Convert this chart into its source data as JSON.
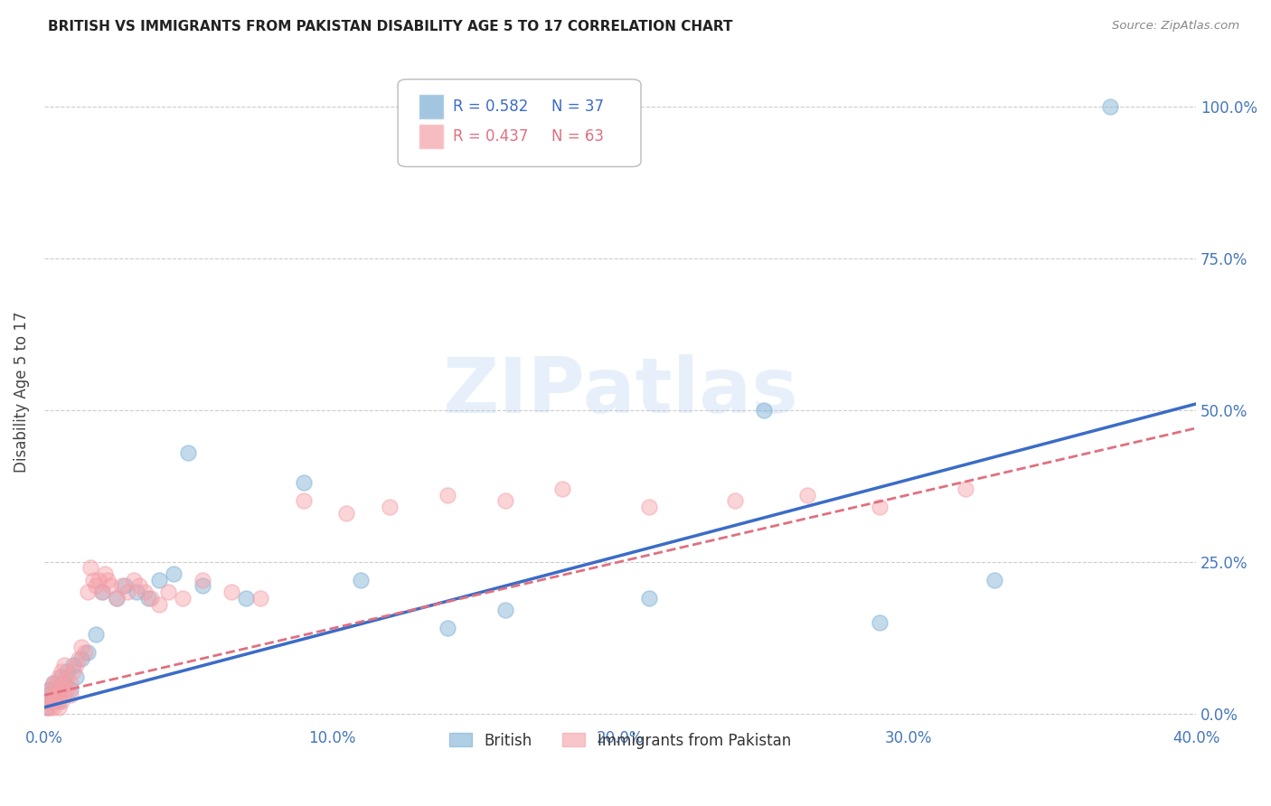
{
  "title": "BRITISH VS IMMIGRANTS FROM PAKISTAN DISABILITY AGE 5 TO 17 CORRELATION CHART",
  "source": "Source: ZipAtlas.com",
  "ylabel": "Disability Age 5 to 17",
  "xlabel_ticks": [
    "0.0%",
    "10.0%",
    "20.0%",
    "30.0%",
    "40.0%"
  ],
  "xlabel_vals": [
    0.0,
    0.1,
    0.2,
    0.3,
    0.4
  ],
  "ylabel_ticks": [
    "0.0%",
    "25.0%",
    "50.0%",
    "75.0%",
    "100.0%"
  ],
  "ylabel_vals": [
    0.0,
    0.25,
    0.5,
    0.75,
    1.0
  ],
  "xlim": [
    0.0,
    0.4
  ],
  "ylim": [
    -0.02,
    1.08
  ],
  "british_R": 0.582,
  "british_N": 37,
  "pakistan_R": 0.437,
  "pakistan_N": 63,
  "british_color": "#7BAFD4",
  "pakistan_color": "#F4A0A8",
  "british_line_color": "#3B6CC7",
  "pakistan_line_color": "#E07080",
  "legend_label_british": "British",
  "legend_label_pakistan": "Immigrants from Pakistan",
  "watermark": "ZIPatlas",
  "british_x": [
    0.001,
    0.001,
    0.002,
    0.002,
    0.003,
    0.003,
    0.004,
    0.005,
    0.005,
    0.006,
    0.007,
    0.008,
    0.009,
    0.01,
    0.011,
    0.013,
    0.015,
    0.018,
    0.02,
    0.025,
    0.028,
    0.032,
    0.036,
    0.04,
    0.045,
    0.05,
    0.055,
    0.07,
    0.09,
    0.11,
    0.14,
    0.16,
    0.21,
    0.25,
    0.29,
    0.33,
    0.37
  ],
  "british_y": [
    0.01,
    0.03,
    0.02,
    0.04,
    0.02,
    0.05,
    0.03,
    0.04,
    0.02,
    0.06,
    0.05,
    0.07,
    0.04,
    0.08,
    0.06,
    0.09,
    0.1,
    0.13,
    0.2,
    0.19,
    0.21,
    0.2,
    0.19,
    0.22,
    0.23,
    0.43,
    0.21,
    0.19,
    0.38,
    0.22,
    0.14,
    0.17,
    0.19,
    0.5,
    0.15,
    0.22,
    1.0
  ],
  "pakistan_x": [
    0.001,
    0.001,
    0.001,
    0.002,
    0.002,
    0.002,
    0.003,
    0.003,
    0.003,
    0.004,
    0.004,
    0.004,
    0.005,
    0.005,
    0.005,
    0.006,
    0.006,
    0.006,
    0.007,
    0.007,
    0.007,
    0.008,
    0.008,
    0.009,
    0.009,
    0.01,
    0.011,
    0.012,
    0.013,
    0.014,
    0.015,
    0.016,
    0.017,
    0.018,
    0.019,
    0.02,
    0.021,
    0.022,
    0.023,
    0.025,
    0.027,
    0.029,
    0.031,
    0.033,
    0.035,
    0.037,
    0.04,
    0.043,
    0.048,
    0.055,
    0.065,
    0.075,
    0.09,
    0.105,
    0.12,
    0.14,
    0.16,
    0.18,
    0.21,
    0.24,
    0.265,
    0.29,
    0.32
  ],
  "pakistan_y": [
    0.01,
    0.02,
    0.03,
    0.01,
    0.02,
    0.04,
    0.01,
    0.03,
    0.05,
    0.02,
    0.03,
    0.05,
    0.01,
    0.03,
    0.06,
    0.02,
    0.04,
    0.07,
    0.03,
    0.05,
    0.08,
    0.04,
    0.06,
    0.03,
    0.05,
    0.07,
    0.08,
    0.09,
    0.11,
    0.1,
    0.2,
    0.24,
    0.22,
    0.21,
    0.22,
    0.2,
    0.23,
    0.22,
    0.21,
    0.19,
    0.21,
    0.2,
    0.22,
    0.21,
    0.2,
    0.19,
    0.18,
    0.2,
    0.19,
    0.22,
    0.2,
    0.19,
    0.35,
    0.33,
    0.34,
    0.36,
    0.35,
    0.37,
    0.34,
    0.35,
    0.36,
    0.34,
    0.37
  ]
}
